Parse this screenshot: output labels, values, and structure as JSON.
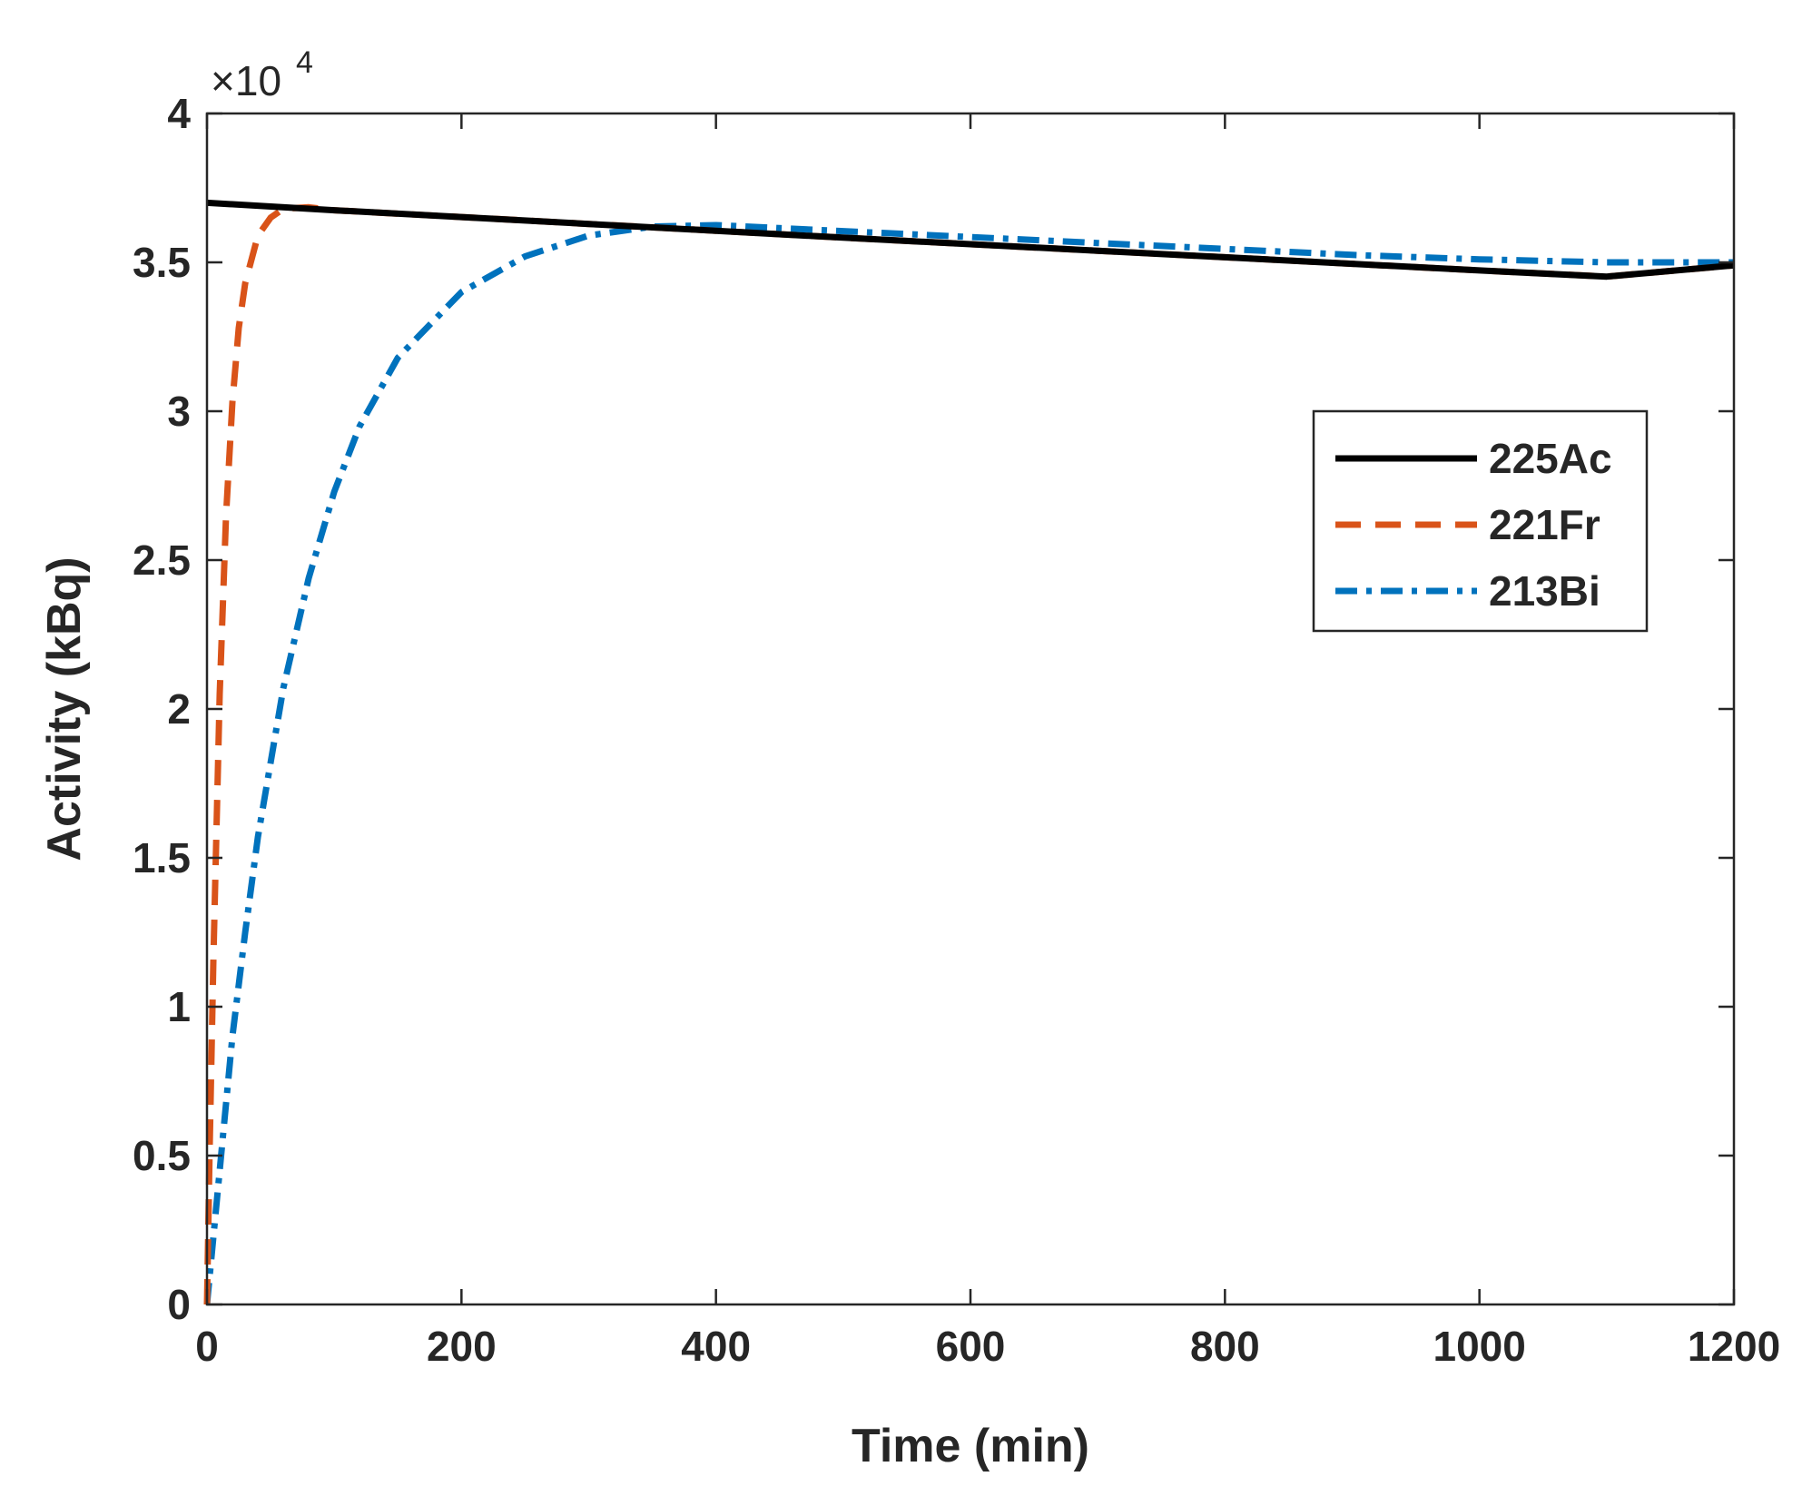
{
  "chart_data": {
    "type": "line",
    "xlabel": "Time (min)",
    "ylabel": "Activity (kBq)",
    "y_exponent_label": "×10",
    "y_exponent_power": "4",
    "y_multiplier": 10000,
    "xlim": [
      0,
      1200
    ],
    "ylim": [
      0,
      40000
    ],
    "x_ticks": [
      0,
      200,
      400,
      600,
      800,
      1000,
      1200
    ],
    "x_tick_labels": [
      "0",
      "200",
      "400",
      "600",
      "800",
      "1000",
      "1200"
    ],
    "y_ticks": [
      0,
      5000,
      10000,
      15000,
      20000,
      25000,
      30000,
      35000,
      40000
    ],
    "y_tick_labels": [
      "0",
      "0.5",
      "1",
      "1.5",
      "2",
      "2.5",
      "3",
      "3.5",
      "4"
    ],
    "grid": false,
    "legend_position": "right, upper-middle",
    "series": [
      {
        "name": "225Ac",
        "color": "#000000",
        "style": "solid",
        "x": [
          0,
          100,
          200,
          300,
          400,
          500,
          600,
          700,
          800,
          900,
          1000,
          1100,
          1200
        ],
        "y": [
          37000,
          36750,
          36520,
          36290,
          36060,
          35830,
          35610,
          35390,
          35170,
          34950,
          34730,
          34520,
          34900
        ]
      },
      {
        "name": "221Fr",
        "color": "#D95319",
        "style": "dashed",
        "x": [
          0,
          2,
          5,
          10,
          15,
          20,
          25,
          30,
          40,
          50,
          60,
          80,
          100,
          200,
          300,
          400,
          500,
          600,
          700,
          800,
          900,
          1000,
          1100,
          1200
        ],
        "y": [
          0,
          5000,
          11500,
          20500,
          26500,
          30300,
          32800,
          34300,
          35900,
          36500,
          36800,
          36850,
          36750,
          36520,
          36290,
          36060,
          35830,
          35610,
          35390,
          35170,
          34950,
          34730,
          34520,
          34900
        ]
      },
      {
        "name": "213Bi",
        "color": "#0072BD",
        "style": "dashdot",
        "x": [
          0,
          10,
          20,
          30,
          40,
          60,
          80,
          100,
          120,
          150,
          200,
          250,
          300,
          350,
          400,
          500,
          600,
          700,
          800,
          900,
          1000,
          1100,
          1200
        ],
        "y": [
          0,
          4500,
          9000,
          12500,
          15700,
          20700,
          24400,
          27300,
          29500,
          31800,
          34000,
          35200,
          35900,
          36200,
          36250,
          36050,
          35850,
          35650,
          35450,
          35250,
          35100,
          35000,
          35000
        ]
      }
    ]
  }
}
